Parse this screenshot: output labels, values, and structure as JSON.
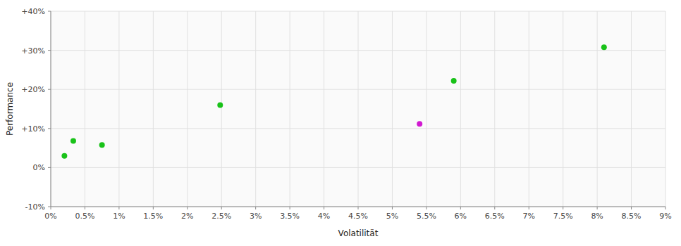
{
  "chart_data": {
    "type": "scatter",
    "xlabel": "Volatilität",
    "ylabel": "Performance",
    "x": [
      0.002,
      0.0033,
      0.0075,
      0.0248,
      0.054,
      0.059,
      0.081
    ],
    "values": [
      0.03,
      0.068,
      0.058,
      0.16,
      0.112,
      0.222,
      0.308
    ],
    "colors": [
      "#00bb00",
      "#00bb00",
      "#00bb00",
      "#00bb00",
      "#cc00cc",
      "#00bb00",
      "#00bb00"
    ],
    "marker": "circle",
    "xlim": [
      0.0,
      0.09
    ],
    "ylim": [
      -0.1,
      0.4
    ],
    "xticks": [
      {
        "value": 0.0,
        "label": "0%"
      },
      {
        "value": 0.005,
        "label": "0.5%"
      },
      {
        "value": 0.01,
        "label": "1%"
      },
      {
        "value": 0.015,
        "label": "1.5%"
      },
      {
        "value": 0.02,
        "label": "2%"
      },
      {
        "value": 0.025,
        "label": "2.5%"
      },
      {
        "value": 0.03,
        "label": "3%"
      },
      {
        "value": 0.035,
        "label": "3.5%"
      },
      {
        "value": 0.04,
        "label": "4%"
      },
      {
        "value": 0.045,
        "label": "4.5%"
      },
      {
        "value": 0.05,
        "label": "5%"
      },
      {
        "value": 0.055,
        "label": "5.5%"
      },
      {
        "value": 0.06,
        "label": "6%"
      },
      {
        "value": 0.065,
        "label": "6.5%"
      },
      {
        "value": 0.07,
        "label": "7%"
      },
      {
        "value": 0.075,
        "label": "7.5%"
      },
      {
        "value": 0.08,
        "label": "8%"
      },
      {
        "value": 0.085,
        "label": "8.5%"
      },
      {
        "value": 0.09,
        "label": "9%"
      }
    ],
    "yticks": [
      {
        "value": -0.1,
        "label": "-10%"
      },
      {
        "value": 0.0,
        "label": "0%"
      },
      {
        "value": 0.1,
        "label": "+10%"
      },
      {
        "value": 0.2,
        "label": "+20%"
      },
      {
        "value": 0.3,
        "label": "+30%"
      },
      {
        "value": 0.4,
        "label": "+40%"
      }
    ],
    "grid": true
  }
}
